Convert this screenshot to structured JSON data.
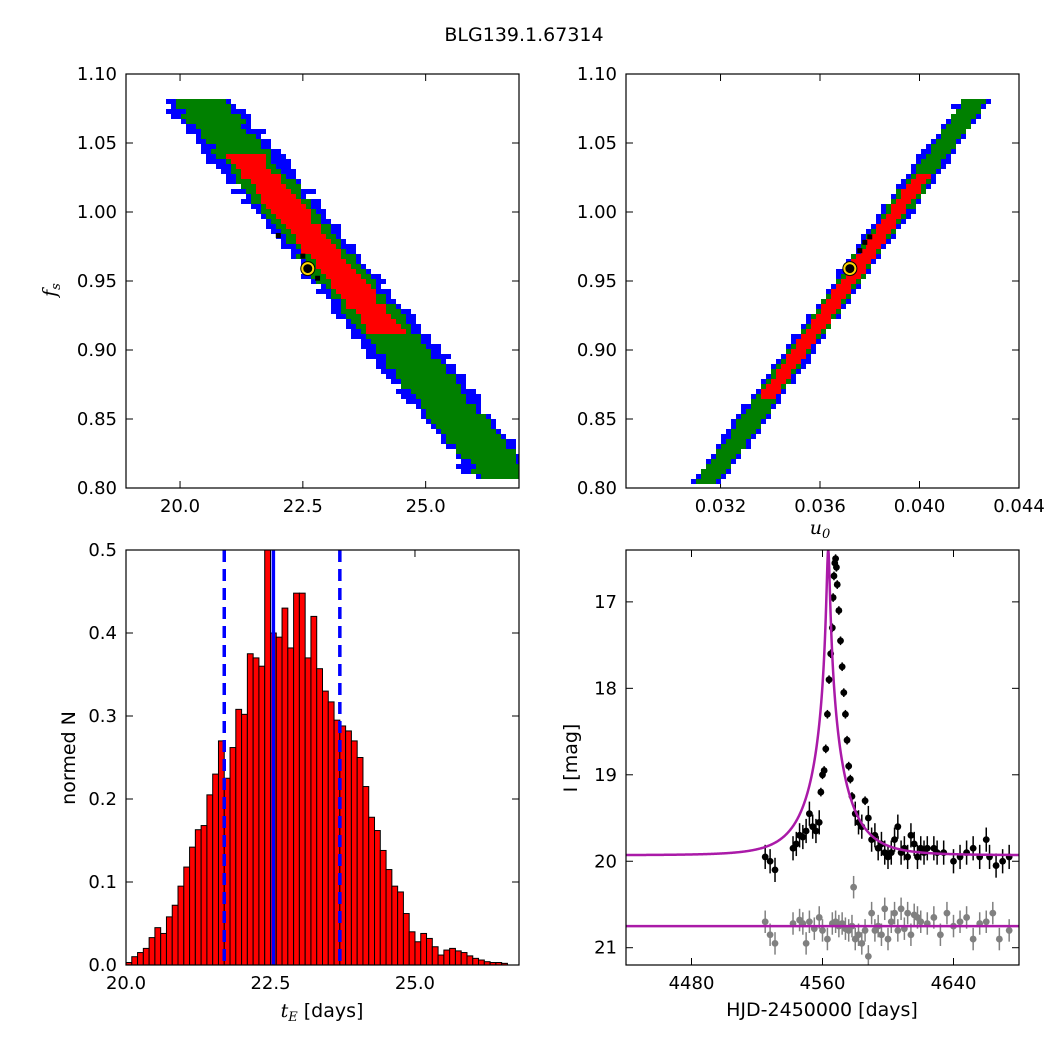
{
  "title": "BLG139.1.67314",
  "colors": {
    "blue": "#0000ff",
    "green": "#008000",
    "red": "#ff0000",
    "black": "#000000",
    "best_fit_marker": "#ffd700",
    "model_line": "#aa1aa8",
    "secondary_data": "#808080",
    "bars": "#ff0000"
  },
  "chart_data": [
    {
      "id": "fs_vs_tE",
      "type": "heatmap",
      "description_levels": [
        "blue",
        "green",
        "red",
        "black"
      ],
      "xlim": [
        18.9,
        26.9
      ],
      "ylim": [
        0.8,
        1.1
      ],
      "xticks": [
        "20.0",
        "22.5",
        "25.0"
      ],
      "xtick_values": [
        20.0,
        22.5,
        25.0
      ],
      "yticks": [
        "1.10",
        "1.05",
        "1.00",
        "0.95",
        "0.90",
        "0.85",
        "0.80"
      ],
      "ytick_values": [
        1.1,
        1.05,
        1.0,
        0.95,
        0.9,
        0.85,
        0.8
      ],
      "xlabel": "",
      "ylabel": "f_s",
      "ridge": {
        "x0": 20.4,
        "y0": 1.08,
        "x1": 26.6,
        "y1": 0.81
      },
      "halfwidth_tE": {
        "blue": 0.68,
        "green": 0.48,
        "red": 0.3
      },
      "red_range_tE": [
        21.3,
        24.3
      ],
      "black_points": [
        [
          22.0,
          0.983
        ],
        [
          22.5,
          0.968
        ],
        [
          22.8,
          0.952
        ]
      ],
      "best_fit": [
        22.6,
        0.959
      ]
    },
    {
      "id": "fs_vs_u0",
      "type": "heatmap",
      "xlim": [
        0.0282,
        0.044
      ],
      "ylim": [
        0.8,
        1.1
      ],
      "xticks": [
        "0.032",
        "0.036",
        "0.040",
        "0.044"
      ],
      "xtick_values": [
        0.032,
        0.036,
        0.04,
        0.044
      ],
      "yticks": [
        "1.10",
        "1.05",
        "1.00",
        "0.95",
        "0.90",
        "0.85",
        "0.80"
      ],
      "ytick_values": [
        1.1,
        1.05,
        1.0,
        0.95,
        0.9,
        0.85,
        0.8
      ],
      "xlabel": "u_0",
      "ylabel": "",
      "ridge": {
        "x0": 0.0315,
        "y0": 0.805,
        "x1": 0.0422,
        "y1": 1.08
      },
      "halfwidth_u0": {
        "blue": 0.00052,
        "green": 0.00036,
        "red": 0.00022
      },
      "red_range_u0": [
        0.0338,
        0.0402
      ],
      "black_points": [
        [
          0.0378,
          0.978
        ],
        [
          0.038,
          0.982
        ],
        [
          0.0376,
          0.972
        ]
      ],
      "best_fit": [
        0.0372,
        0.959
      ]
    },
    {
      "id": "tE_histogram",
      "type": "bar",
      "xlim": [
        20.0,
        26.8
      ],
      "ylim": [
        0.0,
        0.5
      ],
      "xticks": [
        "20.0",
        "22.5",
        "25.0"
      ],
      "xtick_values": [
        20.0,
        22.5,
        25.0
      ],
      "yticks": [
        "0.5",
        "0.4",
        "0.3",
        "0.2",
        "0.1",
        "0.0"
      ],
      "ytick_values": [
        0.5,
        0.4,
        0.3,
        0.2,
        0.1,
        0.0
      ],
      "xlabel_math": "t_E",
      "xlabel": "[days]",
      "ylabel": "normed N",
      "bin_start": 20.0,
      "bin_width": 0.1,
      "values": [
        0.003,
        0.01,
        0.015,
        0.02,
        0.033,
        0.045,
        0.038,
        0.058,
        0.072,
        0.095,
        0.118,
        0.142,
        0.163,
        0.168,
        0.205,
        0.23,
        0.27,
        0.225,
        0.262,
        0.308,
        0.302,
        0.375,
        0.37,
        0.36,
        0.5,
        0.4,
        0.395,
        0.43,
        0.382,
        0.448,
        0.448,
        0.37,
        0.42,
        0.357,
        0.33,
        0.317,
        0.295,
        0.288,
        0.282,
        0.27,
        0.25,
        0.215,
        0.178,
        0.162,
        0.138,
        0.115,
        0.095,
        0.088,
        0.062,
        0.04,
        0.028,
        0.038,
        0.032,
        0.022,
        0.012,
        0.018,
        0.02,
        0.017,
        0.015,
        0.011,
        0.008,
        0.006,
        0.004,
        0.003,
        0.003,
        0.002
      ],
      "median": 22.55,
      "lower_bound": 21.7,
      "upper_bound": 23.7
    },
    {
      "id": "light_curve",
      "type": "scatter",
      "xlim": [
        4440,
        4680
      ],
      "ylim": [
        21.2,
        16.4
      ],
      "xticks": [
        "4480",
        "4560",
        "4640"
      ],
      "xtick_values": [
        4480,
        4560,
        4640
      ],
      "yticks": [
        "17",
        "18",
        "19",
        "20",
        "21"
      ],
      "ytick_values": [
        17,
        18,
        19,
        20,
        21
      ],
      "xlabel": "HJD-2450000 [days]",
      "ylabel": "I [mag]",
      "model": {
        "t0": 4563.5,
        "u0": 0.037,
        "tE": 22.6,
        "fs": 0.96,
        "baseline": 19.93
      },
      "residual_baseline": 20.75,
      "series": [
        {
          "color": "black",
          "points": [
            [
              4525,
              19.95
            ],
            [
              4528,
              20.0
            ],
            [
              4531,
              20.1
            ],
            [
              4542,
              19.85
            ],
            [
              4544,
              19.8
            ],
            [
              4546,
              19.7
            ],
            [
              4548,
              19.72
            ],
            [
              4550,
              19.65
            ],
            [
              4552,
              19.45
            ],
            [
              4554,
              19.6
            ],
            [
              4556,
              19.65
            ],
            [
              4558,
              19.55
            ],
            [
              4559,
              19.2
            ],
            [
              4560,
              19.0
            ],
            [
              4561,
              18.95
            ],
            [
              4562,
              18.7
            ],
            [
              4563,
              18.3
            ],
            [
              4564,
              17.9
            ],
            [
              4565,
              17.6
            ],
            [
              4566,
              17.3
            ],
            [
              4566.5,
              16.95
            ],
            [
              4567,
              16.7
            ],
            [
              4567.5,
              16.55
            ],
            [
              4568,
              16.5
            ],
            [
              4568.5,
              16.6
            ],
            [
              4569,
              16.8
            ],
            [
              4570,
              17.1
            ],
            [
              4571,
              17.45
            ],
            [
              4572,
              17.75
            ],
            [
              4573,
              18.05
            ],
            [
              4574,
              18.3
            ],
            [
              4575,
              18.6
            ],
            [
              4576,
              18.9
            ],
            [
              4577,
              19.05
            ],
            [
              4578,
              19.25
            ],
            [
              4580,
              19.45
            ],
            [
              4582,
              19.55
            ],
            [
              4584,
              19.6
            ],
            [
              4586,
              19.3
            ],
            [
              4588,
              19.5
            ],
            [
              4590,
              19.75
            ],
            [
              4592,
              19.7
            ],
            [
              4594,
              19.85
            ],
            [
              4596,
              19.8
            ],
            [
              4598,
              19.9
            ],
            [
              4600,
              19.95
            ],
            [
              4602,
              19.9
            ],
            [
              4604,
              19.75
            ],
            [
              4606,
              19.6
            ],
            [
              4608,
              19.9
            ],
            [
              4610,
              19.85
            ],
            [
              4612,
              19.95
            ],
            [
              4614,
              19.7
            ],
            [
              4616,
              19.8
            ],
            [
              4618,
              19.95
            ],
            [
              4620,
              19.85
            ],
            [
              4622,
              19.9
            ],
            [
              4624,
              19.85
            ],
            [
              4628,
              19.85
            ],
            [
              4630,
              19.9
            ],
            [
              4634,
              19.9
            ],
            [
              4640,
              20.0
            ],
            [
              4644,
              19.95
            ],
            [
              4648,
              19.9
            ],
            [
              4652,
              19.85
            ],
            [
              4656,
              19.95
            ],
            [
              4660,
              19.75
            ],
            [
              4662,
              19.95
            ],
            [
              4666,
              20.05
            ],
            [
              4670,
              20.0
            ],
            [
              4674,
              19.95
            ]
          ]
        },
        {
          "color": "gray",
          "points": [
            [
              4525,
              20.7
            ],
            [
              4528,
              20.85
            ],
            [
              4531,
              20.95
            ],
            [
              4542,
              20.72
            ],
            [
              4546,
              20.68
            ],
            [
              4548,
              20.72
            ],
            [
              4550,
              20.95
            ],
            [
              4552,
              20.7
            ],
            [
              4555,
              20.78
            ],
            [
              4558,
              20.65
            ],
            [
              4560,
              20.8
            ],
            [
              4563,
              20.9
            ],
            [
              4566,
              20.72
            ],
            [
              4568,
              20.7
            ],
            [
              4570,
              20.75
            ],
            [
              4572,
              20.72
            ],
            [
              4574,
              20.78
            ],
            [
              4576,
              20.8
            ],
            [
              4578,
              20.75
            ],
            [
              4579,
              20.3
            ],
            [
              4580,
              20.9
            ],
            [
              4582,
              20.85
            ],
            [
              4584,
              20.95
            ],
            [
              4586,
              20.8
            ],
            [
              4588,
              21.1
            ],
            [
              4590,
              20.6
            ],
            [
              4592,
              20.8
            ],
            [
              4594,
              20.75
            ],
            [
              4596,
              20.85
            ],
            [
              4598,
              20.55
            ],
            [
              4600,
              20.9
            ],
            [
              4602,
              20.7
            ],
            [
              4604,
              20.6
            ],
            [
              4606,
              20.8
            ],
            [
              4608,
              20.55
            ],
            [
              4610,
              20.78
            ],
            [
              4612,
              20.6
            ],
            [
              4614,
              20.85
            ],
            [
              4616,
              20.62
            ],
            [
              4618,
              20.65
            ],
            [
              4620,
              20.7
            ],
            [
              4624,
              20.72
            ],
            [
              4628,
              20.65
            ],
            [
              4632,
              20.85
            ],
            [
              4636,
              20.6
            ],
            [
              4640,
              20.75
            ],
            [
              4644,
              20.7
            ],
            [
              4648,
              20.65
            ],
            [
              4652,
              20.9
            ],
            [
              4656,
              20.72
            ],
            [
              4660,
              20.7
            ],
            [
              4664,
              20.6
            ],
            [
              4668,
              20.9
            ],
            [
              4674,
              20.8
            ]
          ]
        }
      ]
    }
  ]
}
